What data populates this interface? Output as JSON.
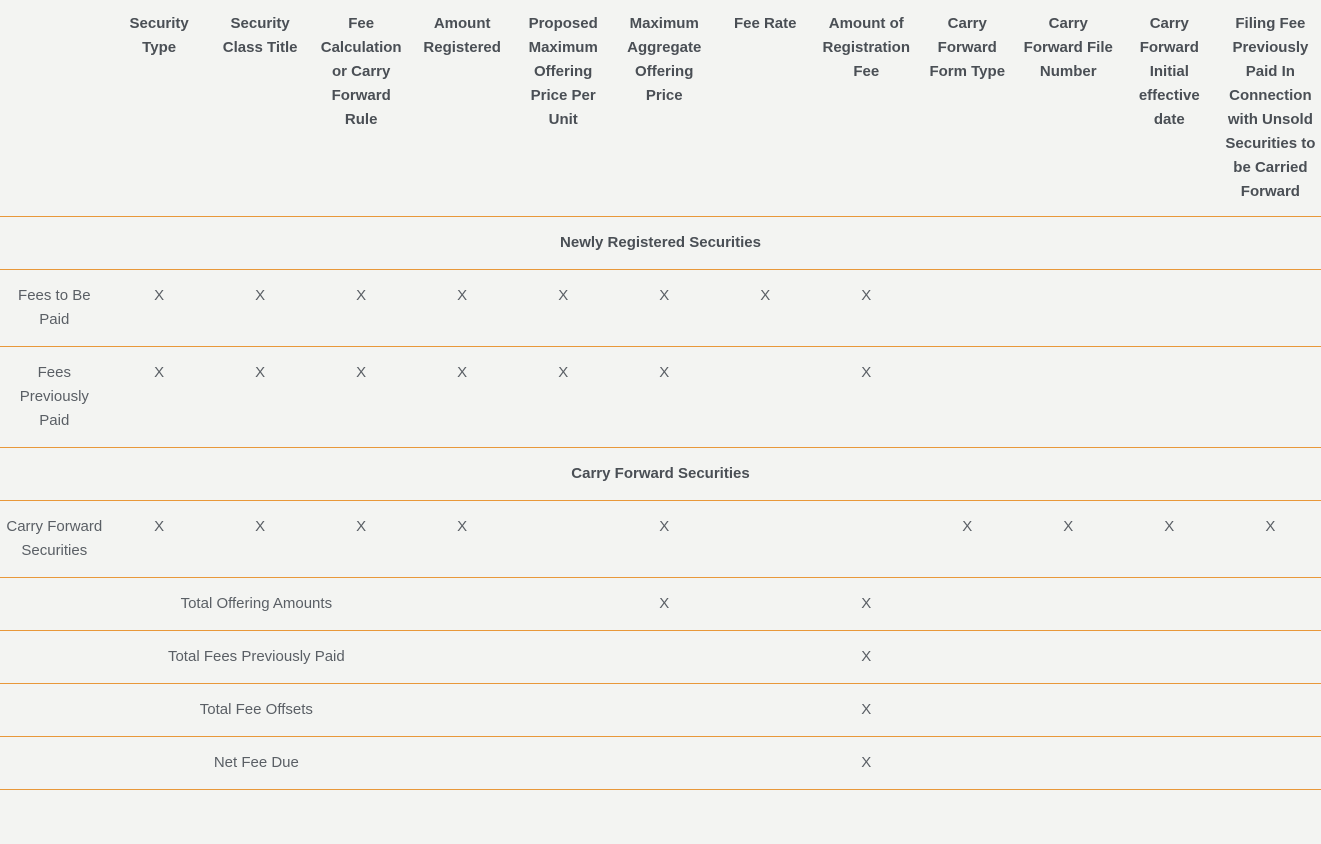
{
  "colors": {
    "background": "#f3f4f2",
    "border": "#e8983a",
    "headerText": "#4a4f55",
    "cellText": "#5a5f65"
  },
  "typography": {
    "fontSize": 15,
    "headerWeight": 600,
    "lineHeight": 1.6
  },
  "columns": [
    "",
    "Security Type",
    "Security Class Title",
    "Fee Calculation or Carry Forward Rule",
    "Amount Registered",
    "Proposed Maximum Offering Price Per Unit",
    "Maximum Aggregate Offering Price",
    "Fee Rate",
    "Amount of Registration Fee",
    "Carry Forward Form Type",
    "Carry Forward File Number",
    "Carry Forward Initial effective date",
    "Filing Fee Previously Paid In Connection with Unsold Securities to be Carried Forward"
  ],
  "sections": {
    "newly": "Newly Registered Securities",
    "carry": "Carry Forward Securities"
  },
  "mark": "X",
  "rows": {
    "feesToBePaid": {
      "label": "Fees to Be Paid",
      "cells": [
        "X",
        "X",
        "X",
        "X",
        "X",
        "X",
        "X",
        "X",
        "",
        "",
        "",
        ""
      ]
    },
    "feesPreviouslyPaid": {
      "label": "Fees Previously Paid",
      "cells": [
        "X",
        "X",
        "X",
        "X",
        "X",
        "X",
        "",
        "X",
        "",
        "",
        "",
        ""
      ]
    },
    "carryForward": {
      "label": "Carry Forward Securities",
      "cells": [
        "X",
        "X",
        "X",
        "X",
        "",
        "X",
        "",
        "",
        "X",
        "X",
        "X",
        "X"
      ]
    }
  },
  "totals": {
    "offeringAmounts": {
      "label": "Total Offering Amounts",
      "col7": "X",
      "col9": "X"
    },
    "feesPreviouslyPaid": {
      "label": "Total Fees Previously Paid",
      "col9": "X"
    },
    "feeOffsets": {
      "label": "Total Fee Offsets",
      "col9": "X"
    },
    "netFeeDue": {
      "label": "Net Fee Due",
      "col9": "X"
    }
  }
}
